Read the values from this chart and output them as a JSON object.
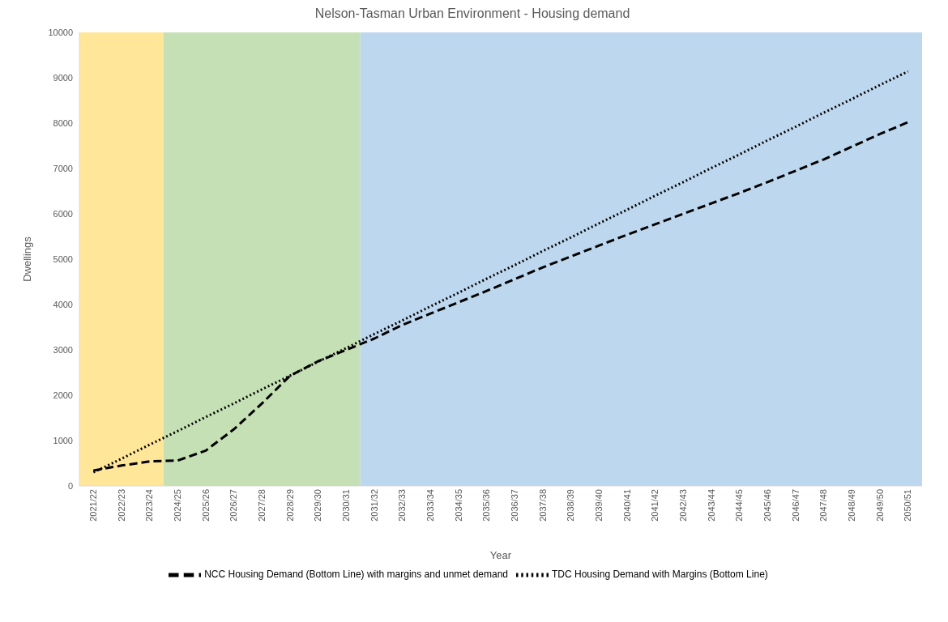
{
  "chart_data": {
    "type": "line",
    "title": "Nelson-Tasman Urban Environment - Housing demand",
    "xlabel": "Year",
    "ylabel": "Dwellings",
    "categories": [
      "2021/22",
      "2022/23",
      "2023/24",
      "2024/25",
      "2025/26",
      "2026/27",
      "2027/28",
      "2028/29",
      "2029/30",
      "2030/31",
      "2031/32",
      "2032/33",
      "2033/34",
      "2034/35",
      "2035/36",
      "2036/37",
      "2037/38",
      "2038/39",
      "2039/40",
      "2040/41",
      "2041/42",
      "2042/43",
      "2043/44",
      "2044/45",
      "2045/46",
      "2046/47",
      "2047/48",
      "2048/49",
      "2049/50",
      "2050/51"
    ],
    "series": [
      {
        "name": "NCC Housing Demand (Bottom Line) with margins and unmet demand",
        "color": "#000000",
        "line_style": "dashed",
        "values": [
          340,
          450,
          540,
          560,
          780,
          1250,
          1820,
          2430,
          2750,
          3000,
          3250,
          3550,
          3800,
          4050,
          4300,
          4560,
          4820,
          5060,
          5300,
          5540,
          5770,
          6000,
          6230,
          6460,
          6700,
          6950,
          7200,
          7480,
          7760,
          8020
        ]
      },
      {
        "name": "TDC Housing Demand with Margins (Bottom Line)",
        "color": "#000000",
        "line_style": "dotted",
        "values": [
          300,
          600,
          910,
          1210,
          1520,
          1820,
          2130,
          2430,
          2740,
          3040,
          3350,
          3650,
          3960,
          4260,
          4570,
          4870,
          5180,
          5480,
          5790,
          6090,
          6400,
          6700,
          7010,
          7310,
          7620,
          7920,
          8230,
          8530,
          8840,
          9140
        ]
      }
    ],
    "bands": [
      {
        "axis": "x",
        "from": "2021/22",
        "to": "2023/24",
        "color": "#ffe699"
      },
      {
        "axis": "x",
        "from": "2024/25",
        "to": "2030/31",
        "color": "#c5e0b4"
      },
      {
        "axis": "x",
        "from": "2031/32",
        "to": "2050/51",
        "color": "#bdd7ee"
      }
    ],
    "ylim": [
      0,
      10000
    ],
    "yticks": [
      0,
      1000,
      2000,
      3000,
      4000,
      5000,
      6000,
      7000,
      8000,
      9000,
      10000
    ],
    "grid": false,
    "legend": "bottom",
    "marker": "none"
  }
}
